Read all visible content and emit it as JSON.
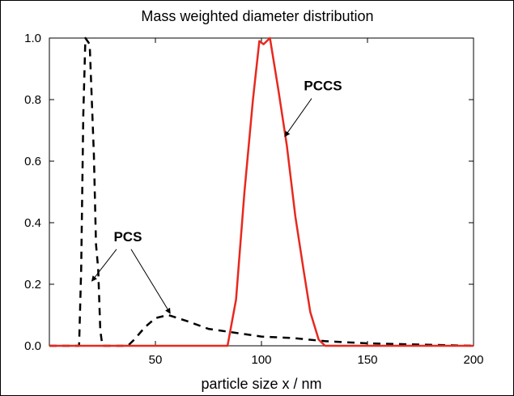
{
  "chart_data": {
    "type": "line",
    "title": "Mass weighted diameter distribution",
    "xlabel": "particle size x / nm",
    "ylabel": "",
    "xlim": [
      0,
      200
    ],
    "ylim": [
      0,
      1.0
    ],
    "x_ticks": [
      50,
      100,
      150,
      200
    ],
    "x_tick_labels": [
      "50",
      "100",
      "150",
      "200"
    ],
    "y_ticks": [
      0.0,
      0.2,
      0.4,
      0.6,
      0.8,
      1.0
    ],
    "y_tick_labels": [
      "0.0",
      "0.2",
      "0.4",
      "0.6",
      "0.8",
      "1.0"
    ],
    "grid": false,
    "series": [
      {
        "name": "PCS",
        "style": "dashed",
        "color": "#000000",
        "points": [
          [
            0,
            0
          ],
          [
            14,
            0
          ],
          [
            15,
            0.25
          ],
          [
            16,
            0.75
          ],
          [
            17,
            1.0
          ],
          [
            19,
            0.98
          ],
          [
            21,
            0.62
          ],
          [
            22,
            0.33
          ],
          [
            23,
            0.25
          ],
          [
            24,
            0.05
          ],
          [
            25,
            0
          ],
          [
            37,
            0
          ],
          [
            40,
            0.02
          ],
          [
            45,
            0.06
          ],
          [
            50,
            0.09
          ],
          [
            56,
            0.1
          ],
          [
            65,
            0.08
          ],
          [
            75,
            0.055
          ],
          [
            90,
            0.04
          ],
          [
            100,
            0.03
          ],
          [
            115,
            0.025
          ],
          [
            130,
            0.015
          ],
          [
            150,
            0.008
          ],
          [
            175,
            0.004
          ],
          [
            200,
            0
          ]
        ]
      },
      {
        "name": "PCCS",
        "style": "solid",
        "color": "#e8281e",
        "points": [
          [
            0,
            0
          ],
          [
            84,
            0
          ],
          [
            88,
            0.15
          ],
          [
            92,
            0.5
          ],
          [
            96,
            0.8
          ],
          [
            99,
            0.99
          ],
          [
            101,
            0.98
          ],
          [
            104,
            1.0
          ],
          [
            108,
            0.83
          ],
          [
            112,
            0.65
          ],
          [
            116,
            0.42
          ],
          [
            120,
            0.24
          ],
          [
            123,
            0.11
          ],
          [
            127,
            0.02
          ],
          [
            130,
            0
          ],
          [
            200,
            0
          ]
        ]
      }
    ],
    "annotations": [
      {
        "text": "PCS",
        "label_at": [
          37,
          0.34
        ],
        "arrows_to": [
          [
            20,
            0.21
          ],
          [
            57,
            0.105
          ]
        ]
      },
      {
        "text": "PCCS",
        "label_at": [
          129,
          0.83
        ],
        "arrows_to": [
          [
            111,
            0.68
          ]
        ]
      }
    ]
  }
}
